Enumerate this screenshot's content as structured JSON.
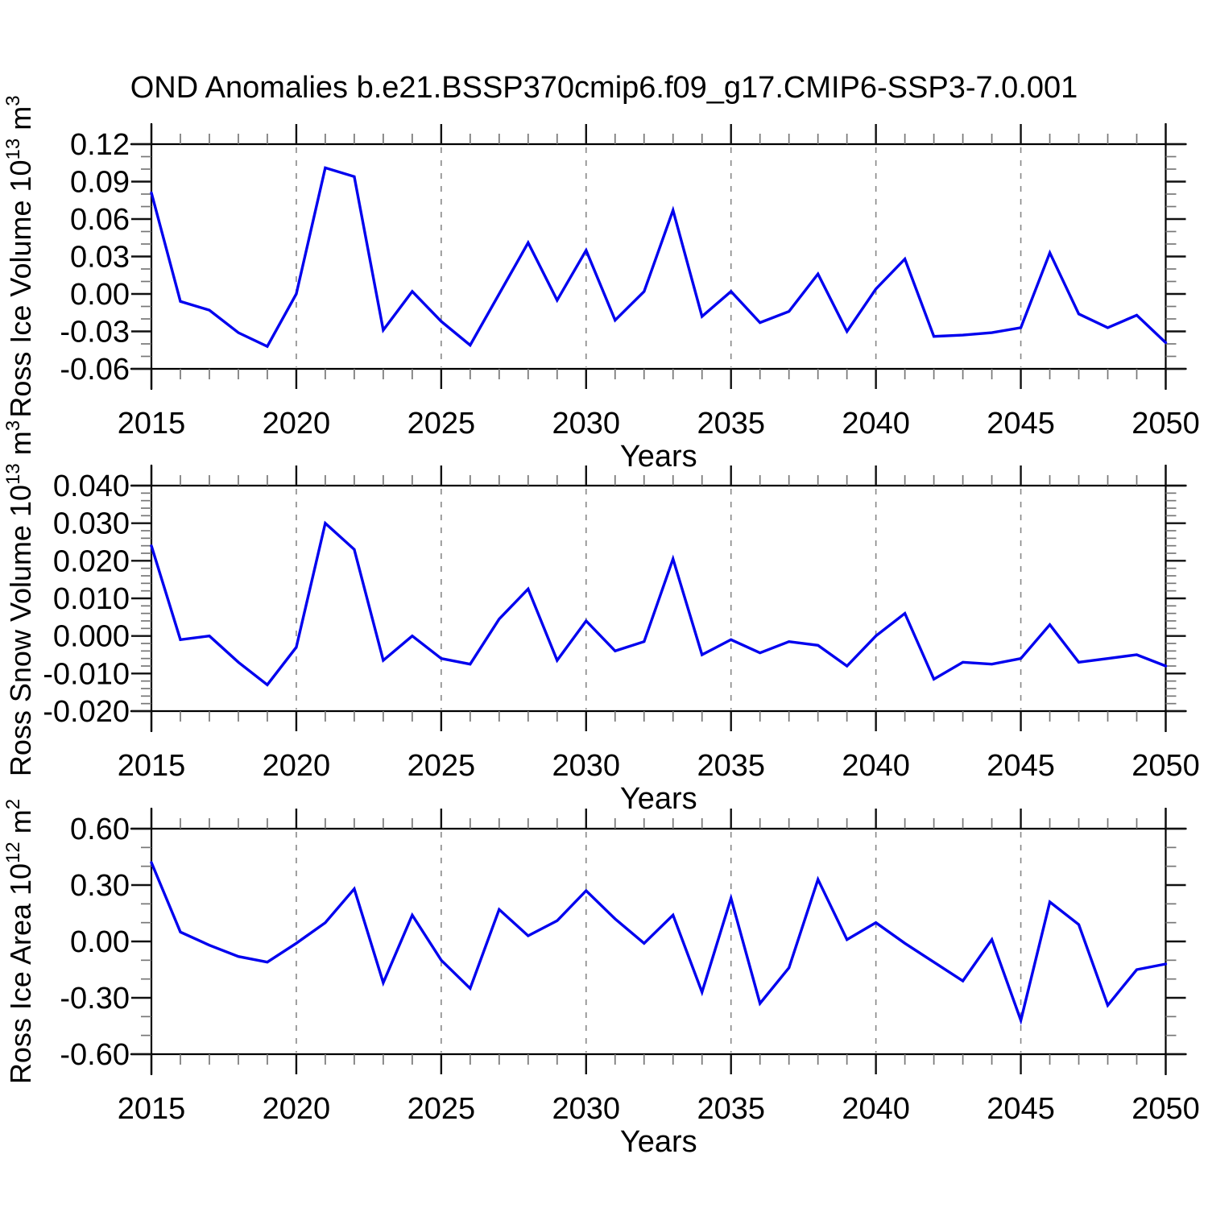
{
  "page": {
    "title": "OND Anomalies b.e21.BSSP370cmip6.f09_g17.CMIP6-SSP3-7.0.001",
    "background": "#ffffff"
  },
  "colors": {
    "line": "#0000ee",
    "frame": "#000000",
    "major_tick": "#111111",
    "minor_tick": "#777777",
    "gridline": "#888888",
    "text": "#000000"
  },
  "chart_data": [
    {
      "id": "ross-ice-volume",
      "type": "line",
      "xlabel": "Years",
      "ylabel": "Ross Ice Volume 10^13 m^3",
      "ylabel_parts": [
        {
          "text": "Ross Ice Volume 10",
          "sup": false
        },
        {
          "text": "13",
          "sup": true
        },
        {
          "text": " m",
          "sup": false
        },
        {
          "text": "3",
          "sup": true
        }
      ],
      "xlim": [
        2015,
        2050
      ],
      "ylim": [
        -0.06,
        0.12
      ],
      "xticks": [
        {
          "v": 2015,
          "label": "2015"
        },
        {
          "v": 2020,
          "label": "2020"
        },
        {
          "v": 2025,
          "label": "2025"
        },
        {
          "v": 2030,
          "label": "2030"
        },
        {
          "v": 2035,
          "label": "2035"
        },
        {
          "v": 2040,
          "label": "2040"
        },
        {
          "v": 2045,
          "label": "2045"
        },
        {
          "v": 2050,
          "label": "2050"
        }
      ],
      "yticks": [
        {
          "v": 0.12,
          "label": "0.12"
        },
        {
          "v": 0.09,
          "label": "0.09"
        },
        {
          "v": 0.06,
          "label": "0.06"
        },
        {
          "v": 0.03,
          "label": "0.03"
        },
        {
          "v": 0.0,
          "label": "0.00"
        },
        {
          "v": -0.03,
          "label": "-0.03"
        },
        {
          "v": -0.06,
          "label": "-0.06"
        }
      ],
      "y_minor_step": 0.01,
      "y_major_step": 0.03,
      "x_minor_step": 1,
      "x_major_step": 5,
      "gridlines_x": [
        2020,
        2025,
        2030,
        2035,
        2040,
        2045
      ],
      "grid": "vertical-dashed",
      "legend": "none",
      "x": [
        2015,
        2016,
        2017,
        2018,
        2019,
        2020,
        2021,
        2022,
        2023,
        2024,
        2025,
        2026,
        2027,
        2028,
        2029,
        2030,
        2031,
        2032,
        2033,
        2034,
        2035,
        2036,
        2037,
        2038,
        2039,
        2040,
        2041,
        2042,
        2043,
        2044,
        2045,
        2046,
        2047,
        2048,
        2049,
        2050
      ],
      "values": [
        0.081,
        -0.006,
        -0.013,
        -0.031,
        -0.042,
        0.0,
        0.101,
        0.094,
        -0.029,
        0.002,
        -0.022,
        -0.041,
        0.0,
        0.041,
        -0.005,
        0.035,
        -0.021,
        0.002,
        0.067,
        -0.018,
        0.002,
        -0.023,
        -0.014,
        0.016,
        -0.03,
        0.004,
        0.028,
        -0.034,
        -0.033,
        -0.031,
        -0.027,
        0.033,
        -0.016,
        -0.027,
        -0.017,
        -0.039
      ]
    },
    {
      "id": "ross-snow-volume",
      "type": "line",
      "xlabel": "Years",
      "ylabel": "Ross Snow Volume 10^13 m^3",
      "ylabel_parts": [
        {
          "text": "Ross Snow Volume 10",
          "sup": false
        },
        {
          "text": "13",
          "sup": true
        },
        {
          "text": " m",
          "sup": false
        },
        {
          "text": "3",
          "sup": true
        }
      ],
      "xlim": [
        2015,
        2050
      ],
      "ylim": [
        -0.02,
        0.04
      ],
      "xticks": [
        {
          "v": 2015,
          "label": "2015"
        },
        {
          "v": 2020,
          "label": "2020"
        },
        {
          "v": 2025,
          "label": "2025"
        },
        {
          "v": 2030,
          "label": "2030"
        },
        {
          "v": 2035,
          "label": "2035"
        },
        {
          "v": 2040,
          "label": "2040"
        },
        {
          "v": 2045,
          "label": "2045"
        },
        {
          "v": 2050,
          "label": "2050"
        }
      ],
      "yticks": [
        {
          "v": 0.04,
          "label": "0.040"
        },
        {
          "v": 0.03,
          "label": "0.030"
        },
        {
          "v": 0.02,
          "label": "0.020"
        },
        {
          "v": 0.01,
          "label": "0.010"
        },
        {
          "v": 0.0,
          "label": "0.000"
        },
        {
          "v": -0.01,
          "label": "-0.010"
        },
        {
          "v": -0.02,
          "label": "-0.020"
        }
      ],
      "y_minor_step": 0.002,
      "y_major_step": 0.01,
      "x_minor_step": 1,
      "x_major_step": 5,
      "gridlines_x": [
        2020,
        2025,
        2030,
        2035,
        2040,
        2045
      ],
      "grid": "vertical-dashed",
      "legend": "none",
      "x": [
        2015,
        2016,
        2017,
        2018,
        2019,
        2020,
        2021,
        2022,
        2023,
        2024,
        2025,
        2026,
        2027,
        2028,
        2029,
        2030,
        2031,
        2032,
        2033,
        2034,
        2035,
        2036,
        2037,
        2038,
        2039,
        2040,
        2041,
        2042,
        2043,
        2044,
        2045,
        2046,
        2047,
        2048,
        2049,
        2050
      ],
      "values": [
        0.024,
        -0.001,
        0.0,
        -0.007,
        -0.013,
        -0.003,
        0.03,
        0.023,
        -0.0065,
        0.0,
        -0.006,
        -0.0075,
        0.0045,
        0.0125,
        -0.0065,
        0.004,
        -0.004,
        -0.0015,
        0.0205,
        -0.005,
        -0.001,
        -0.0045,
        -0.0015,
        -0.0025,
        -0.008,
        0.0,
        0.006,
        -0.0115,
        -0.007,
        -0.0075,
        -0.006,
        0.003,
        -0.007,
        -0.006,
        -0.005,
        -0.008
      ]
    },
    {
      "id": "ross-ice-area",
      "type": "line",
      "xlabel": "Years",
      "ylabel": "Ross Ice Area 10^12 m^2",
      "ylabel_parts": [
        {
          "text": "Ross Ice Area 10",
          "sup": false
        },
        {
          "text": "12",
          "sup": true
        },
        {
          "text": " m",
          "sup": false
        },
        {
          "text": "2",
          "sup": true
        }
      ],
      "xlim": [
        2015,
        2050
      ],
      "ylim": [
        -0.6,
        0.6
      ],
      "xticks": [
        {
          "v": 2015,
          "label": "2015"
        },
        {
          "v": 2020,
          "label": "2020"
        },
        {
          "v": 2025,
          "label": "2025"
        },
        {
          "v": 2030,
          "label": "2030"
        },
        {
          "v": 2035,
          "label": "2035"
        },
        {
          "v": 2040,
          "label": "2040"
        },
        {
          "v": 2045,
          "label": "2045"
        },
        {
          "v": 2050,
          "label": "2050"
        }
      ],
      "yticks": [
        {
          "v": 0.6,
          "label": "0.60"
        },
        {
          "v": 0.3,
          "label": "0.30"
        },
        {
          "v": 0.0,
          "label": "0.00"
        },
        {
          "v": -0.3,
          "label": "-0.30"
        },
        {
          "v": -0.6,
          "label": "-0.60"
        }
      ],
      "y_minor_step": 0.1,
      "y_major_step": 0.3,
      "x_minor_step": 1,
      "x_major_step": 5,
      "gridlines_x": [
        2020,
        2025,
        2030,
        2035,
        2040,
        2045
      ],
      "grid": "vertical-dashed",
      "legend": "none",
      "x": [
        2015,
        2016,
        2017,
        2018,
        2019,
        2020,
        2021,
        2022,
        2023,
        2024,
        2025,
        2026,
        2027,
        2028,
        2029,
        2030,
        2031,
        2032,
        2033,
        2034,
        2035,
        2036,
        2037,
        2038,
        2039,
        2040,
        2041,
        2042,
        2043,
        2044,
        2045,
        2046,
        2047,
        2048,
        2049,
        2050
      ],
      "values": [
        0.42,
        0.05,
        -0.02,
        -0.08,
        -0.11,
        -0.01,
        0.1,
        0.28,
        -0.22,
        0.14,
        -0.1,
        -0.25,
        0.17,
        0.03,
        0.11,
        0.27,
        0.12,
        -0.01,
        0.14,
        -0.27,
        0.23,
        -0.33,
        -0.14,
        0.33,
        0.01,
        0.1,
        -0.01,
        -0.11,
        -0.21,
        0.01,
        -0.42,
        0.21,
        0.09,
        -0.34,
        -0.15,
        -0.12
      ]
    }
  ]
}
